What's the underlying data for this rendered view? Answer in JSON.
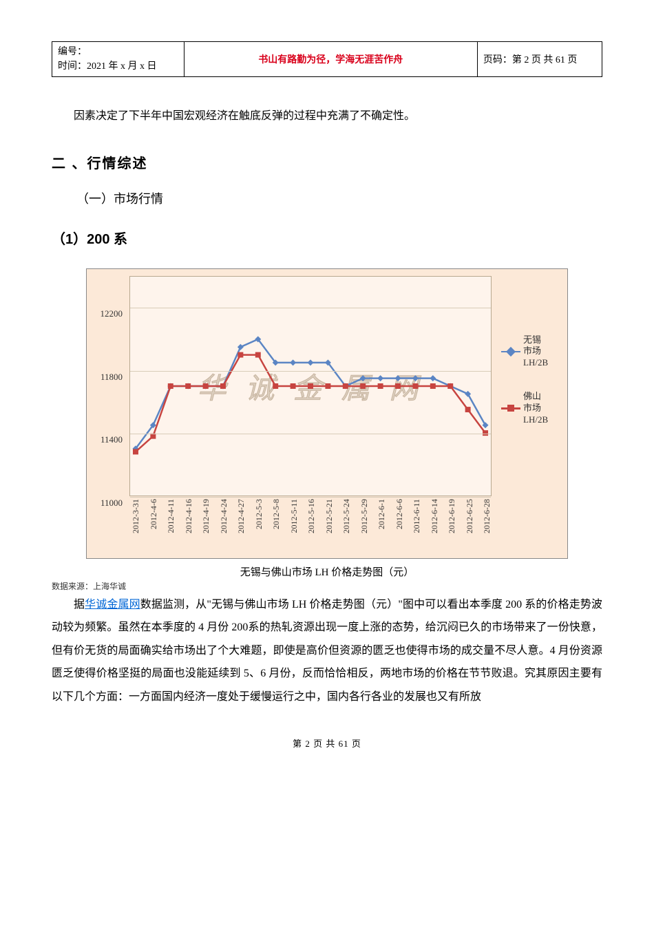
{
  "header": {
    "serial_label": "编号：",
    "time_label": "时间：2021 年 x 月 x 日",
    "motto": "书山有路勤为径，学海无涯苦作舟",
    "page_label": "页码：第 2 页  共 61 页"
  },
  "intro_para": "因素决定了下半年中国宏观经济在触底反弹的过程中充满了不确定性。",
  "section_heading": "二 、行情综述",
  "subsection_heading": "（一）市场行情",
  "subsection2_heading": "（1）200 系",
  "chart": {
    "type": "line",
    "background_color": "#fce9d8",
    "plot_bg_color": "#fef4ec",
    "grid_color": "#d8ccb8",
    "border_color": "#b8a890",
    "ylim": [
      11000,
      12400
    ],
    "yticks": [
      11000,
      11400,
      11800,
      12200
    ],
    "x_labels": [
      "2012-3-31",
      "2012-4-6",
      "2012-4-11",
      "2012-4-16",
      "2012-4-19",
      "2012-4-24",
      "2012-4-27",
      "2012-5-3",
      "2012-5-8",
      "2012-5-11",
      "2012-5-16",
      "2012-5-21",
      "2012-5-24",
      "2012-5-29",
      "2012-6-1",
      "2012-6-6",
      "2012-6-11",
      "2012-6-14",
      "2012-6-19",
      "2012-6-25",
      "2012-6-28"
    ],
    "series": [
      {
        "name": "无锡市场LH/2B",
        "label": "无锡\n市场\nLH/2B",
        "color": "#5b85c4",
        "marker": "diamond",
        "values": [
          11300,
          11450,
          11700,
          11700,
          11700,
          11700,
          11950,
          12000,
          11850,
          11850,
          11850,
          11850,
          11700,
          11750,
          11750,
          11750,
          11750,
          11750,
          11700,
          11650,
          11450
        ]
      },
      {
        "name": "佛山市场LH/2B",
        "label": "佛山\n市场\nLH/2B",
        "color": "#c74440",
        "marker": "square",
        "values": [
          11280,
          11380,
          11700,
          11700,
          11700,
          11700,
          11900,
          11900,
          11700,
          11700,
          11700,
          11700,
          11700,
          11700,
          11700,
          11700,
          11700,
          11700,
          11700,
          11550,
          11400
        ]
      }
    ],
    "watermark": "华 诚 金 属 网",
    "caption": "无锡与佛山市场 LH 价格走势图（元）",
    "source": "数据来源：上海华诚",
    "label_fontsize": 13,
    "tick_fontsize": 12,
    "line_width": 2.5,
    "marker_size": 8
  },
  "body": {
    "lead": "据",
    "link_text": "华诚金属网",
    "rest": "数据监测，从\"无锡与佛山市场 LH 价格走势图（元）\"图中可以看出本季度 200 系的价格走势波动较为频繁。虽然在本季度的 4 月份 200系的热轧资源出现一度上涨的态势，给沉闷已久的市场带来了一份快意，但有价无货的局面确实给市场出了个大难题，即使是高价但资源的匮乏也使得市场的成交量不尽人意。4 月份资源匮乏使得价格坚挺的局面也没能延续到 5、6 月份，反而恰恰相反，两地市场的价格在节节败退。究其原因主要有以下几个方面：一方面国内经济一度处于缓慢运行之中，国内各行各业的发展也又有所放"
  },
  "footer": "第  2  页  共  61  页"
}
